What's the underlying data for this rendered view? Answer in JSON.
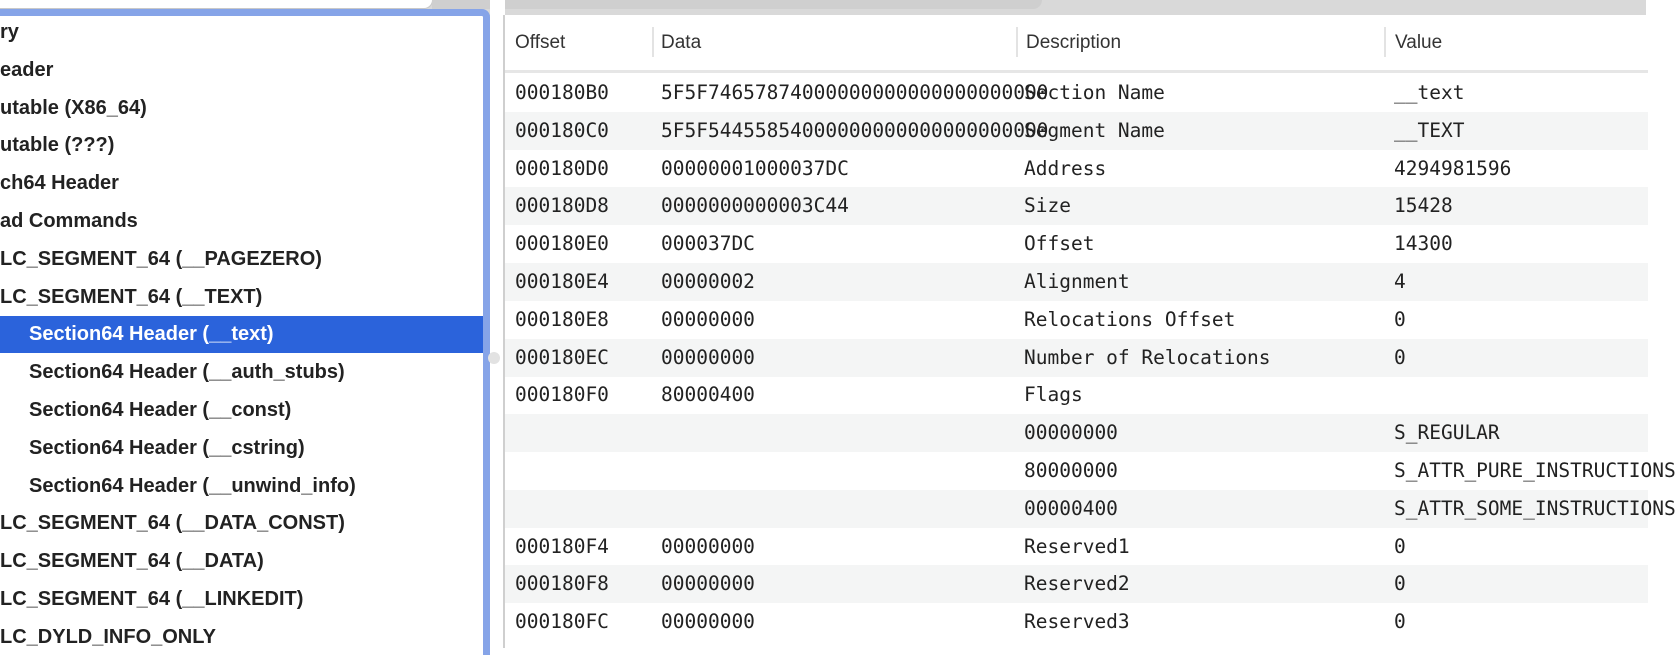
{
  "tree": {
    "items": [
      {
        "label": "ry",
        "child": false,
        "selected": false
      },
      {
        "label": "eader",
        "child": false,
        "selected": false
      },
      {
        "label": "utable  (X86_64)",
        "child": false,
        "selected": false
      },
      {
        "label": "utable  (???)",
        "child": false,
        "selected": false
      },
      {
        "label": "ch64 Header",
        "child": false,
        "selected": false
      },
      {
        "label": "ad Commands",
        "child": false,
        "selected": false
      },
      {
        "label": "LC_SEGMENT_64 (__PAGEZERO)",
        "child": false,
        "selected": false
      },
      {
        "label": "LC_SEGMENT_64 (__TEXT)",
        "child": false,
        "selected": false
      },
      {
        "label": "Section64 Header (__text)",
        "child": true,
        "selected": true
      },
      {
        "label": "Section64 Header (__auth_stubs)",
        "child": true,
        "selected": false
      },
      {
        "label": "Section64 Header (__const)",
        "child": true,
        "selected": false
      },
      {
        "label": "Section64 Header (__cstring)",
        "child": true,
        "selected": false
      },
      {
        "label": "Section64 Header (__unwind_info)",
        "child": true,
        "selected": false
      },
      {
        "label": "LC_SEGMENT_64 (__DATA_CONST)",
        "child": false,
        "selected": false
      },
      {
        "label": "LC_SEGMENT_64 (__DATA)",
        "child": false,
        "selected": false
      },
      {
        "label": "LC_SEGMENT_64 (__LINKEDIT)",
        "child": false,
        "selected": false
      },
      {
        "label": "LC_DYLD_INFO_ONLY",
        "child": false,
        "selected": false
      }
    ]
  },
  "table": {
    "columns": [
      "Offset",
      "Data",
      "Description",
      "Value"
    ],
    "rows": [
      [
        "000180B0",
        "5F5F74657874000000000000000000000",
        "Section Name",
        "__text"
      ],
      [
        "000180C0",
        "5F5F54455854000000000000000000000",
        "Segment Name",
        "__TEXT"
      ],
      [
        "000180D0",
        "00000001000037DC",
        "Address",
        "4294981596"
      ],
      [
        "000180D8",
        "0000000000003C44",
        "Size",
        "15428"
      ],
      [
        "000180E0",
        "000037DC",
        "Offset",
        "14300"
      ],
      [
        "000180E4",
        "00000002",
        "Alignment",
        "4"
      ],
      [
        "000180E8",
        "00000000",
        "Relocations Offset",
        "0"
      ],
      [
        "000180EC",
        "00000000",
        "Number of Relocations",
        "0"
      ],
      [
        "000180F0",
        "80000400",
        "Flags",
        ""
      ],
      [
        "",
        "",
        "00000000",
        "S_REGULAR"
      ],
      [
        "",
        "",
        "80000000",
        "S_ATTR_PURE_INSTRUCTIONS"
      ],
      [
        "",
        "",
        "00000400",
        "S_ATTR_SOME_INSTRUCTIONS"
      ],
      [
        "000180F4",
        "00000000",
        "Reserved1",
        "0"
      ],
      [
        "000180F8",
        "00000000",
        "Reserved2",
        "0"
      ],
      [
        "000180FC",
        "00000000",
        "Reserved3",
        "0"
      ]
    ]
  },
  "colors": {
    "selection": "#2b63db",
    "focus_ring": "#86a4e8",
    "alt_row": "#f4f5f5"
  }
}
